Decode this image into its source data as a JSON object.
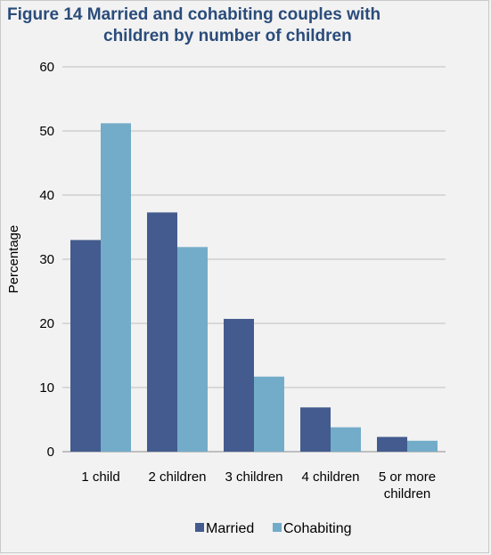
{
  "title": {
    "line1": "Figure 14  Married and cohabiting couples with",
    "line2": "children by number of children"
  },
  "colors": {
    "married": "#435b8e",
    "cohabiting": "#73acc9",
    "grid": "#bfbfbf",
    "title": "#2a4c7a"
  },
  "chart_data": {
    "type": "bar",
    "title": "Figure 14  Married and cohabiting couples with children by number of children",
    "ylabel": "Percentage",
    "xlabel": "",
    "ylim": [
      0,
      60
    ],
    "yticks": [
      0,
      10,
      20,
      30,
      40,
      50,
      60
    ],
    "categories": [
      "1 child",
      "2 children",
      "3 children",
      "4 children",
      "5 or more children"
    ],
    "category_lines": [
      [
        "1 child"
      ],
      [
        "2 children"
      ],
      [
        "3 children"
      ],
      [
        "4 children"
      ],
      [
        "5 or more",
        "children"
      ]
    ],
    "series": [
      {
        "name": "Married",
        "values": [
          33,
          37.3,
          20.7,
          6.9,
          2.3
        ]
      },
      {
        "name": "Cohabiting",
        "values": [
          51.2,
          31.9,
          11.7,
          3.8,
          1.7
        ]
      }
    ],
    "grid": true,
    "legend": "bottom"
  }
}
